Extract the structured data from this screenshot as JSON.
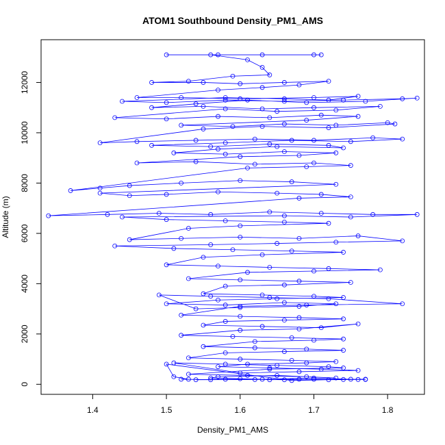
{
  "chart_data": {
    "type": "scatter",
    "title": "ATOM1 Southbound Density_PM1_AMS",
    "xlabel": "Density_PM1_AMS",
    "ylabel": "Altitude (m)",
    "xlim": [
      1.33,
      1.85
    ],
    "ylim": [
      -400,
      13700
    ],
    "x_ticks": [
      1.4,
      1.5,
      1.6,
      1.7,
      1.8
    ],
    "y_ticks": [
      0,
      2000,
      4000,
      6000,
      8000,
      10000,
      12000
    ],
    "grid": false,
    "legend": "none",
    "line_color": "#0000ff",
    "series": [
      {
        "x": [
          1.5,
          1.57,
          1.63,
          1.7,
          1.71,
          1.56,
          1.61,
          1.63,
          1.64,
          1.59,
          1.53,
          1.48,
          1.55,
          1.6,
          1.66,
          1.72,
          1.68,
          1.63,
          1.57,
          1.46,
          1.52,
          1.6,
          1.7,
          1.76,
          1.72,
          1.66,
          1.58,
          1.44,
          1.5,
          1.58,
          1.66,
          1.74,
          1.82,
          1.84,
          1.77,
          1.69,
          1.61,
          1.54,
          1.48,
          1.55,
          1.63,
          1.7,
          1.79,
          1.73,
          1.65,
          1.58,
          1.43,
          1.5,
          1.57,
          1.64,
          1.71,
          1.76,
          1.69,
          1.52,
          1.59,
          1.66,
          1.73,
          1.8,
          1.81,
          1.72,
          1.63,
          1.55,
          1.41,
          1.46,
          1.54,
          1.62,
          1.7,
          1.78,
          1.82,
          1.75,
          1.67,
          1.58,
          1.48,
          1.56,
          1.64,
          1.72,
          1.74,
          1.65,
          1.57,
          1.51,
          1.58,
          1.66,
          1.73,
          1.68,
          1.6,
          1.46,
          1.54,
          1.62,
          1.7,
          1.75,
          1.69,
          1.61,
          1.37,
          1.41,
          1.45,
          1.52,
          1.6,
          1.67,
          1.73,
          1.41,
          1.45,
          1.5,
          1.57,
          1.65,
          1.71,
          1.75,
          1.68,
          1.34,
          1.42,
          1.49,
          1.56,
          1.64,
          1.71,
          1.78,
          1.84,
          1.75,
          1.66,
          1.44,
          1.5,
          1.58,
          1.66,
          1.72,
          1.6,
          1.53,
          1.45,
          1.52,
          1.6,
          1.68,
          1.76,
          1.82,
          1.73,
          1.65,
          1.56,
          1.43,
          1.51,
          1.59,
          1.67,
          1.74,
          1.63,
          1.55,
          1.5,
          1.57,
          1.64,
          1.72,
          1.79,
          1.7,
          1.61,
          1.53,
          1.6,
          1.68,
          1.75,
          1.66,
          1.58,
          1.55,
          1.63,
          1.7,
          1.74,
          1.65,
          1.57,
          1.5,
          1.58,
          1.66,
          1.73,
          1.68,
          1.6,
          1.54,
          1.49,
          1.56,
          1.64,
          1.72,
          1.82,
          1.69,
          1.6,
          1.52,
          1.6,
          1.68,
          1.74,
          1.66,
          1.58,
          1.55,
          1.63,
          1.71,
          1.76,
          1.68,
          1.6,
          1.52,
          1.59,
          1.67,
          1.74,
          1.7,
          1.62,
          1.55,
          1.62,
          1.69,
          1.74,
          1.66,
          1.58,
          1.53,
          1.6,
          1.67,
          1.73,
          1.69,
          1.61,
          1.57,
          1.64,
          1.71,
          1.76,
          1.68,
          1.6,
          1.51,
          1.58,
          1.65,
          1.72,
          1.74,
          1.64,
          1.53,
          1.61,
          1.69,
          1.73,
          1.65,
          1.57,
          1.56,
          1.63,
          1.7,
          1.75,
          1.67,
          1.5,
          1.51,
          1.53,
          1.52,
          1.56,
          1.6,
          1.64,
          1.68,
          1.72,
          1.76,
          1.77,
          1.54,
          1.58,
          1.62,
          1.66,
          1.7,
          1.74,
          1.77
        ],
        "y": [
          13100,
          13100,
          13100,
          13100,
          13100,
          13100,
          12900,
          12600,
          12300,
          12250,
          12050,
          12000,
          12000,
          11950,
          12000,
          12050,
          11900,
          11800,
          11700,
          11400,
          11400,
          11350,
          11400,
          11450,
          11300,
          11350,
          11400,
          11250,
          11200,
          11300,
          11250,
          11300,
          11350,
          11380,
          11250,
          11200,
          11300,
          11150,
          11000,
          11050,
          10950,
          11000,
          11050,
          10900,
          10850,
          10950,
          10600,
          10550,
          10650,
          10600,
          10700,
          10650,
          10500,
          10300,
          10250,
          10350,
          10300,
          10400,
          10350,
          10200,
          10250,
          10150,
          9600,
          9650,
          9700,
          9750,
          9700,
          9800,
          9750,
          9650,
          9700,
          9600,
          9500,
          9450,
          9550,
          9500,
          9400,
          9450,
          9350,
          9200,
          9150,
          9250,
          9200,
          9100,
          9050,
          8800,
          8850,
          8750,
          8800,
          8700,
          8650,
          8600,
          7700,
          7800,
          7900,
          8000,
          8100,
          8050,
          7950,
          7600,
          7500,
          7550,
          7650,
          7600,
          7550,
          7450,
          7400,
          6700,
          6750,
          6800,
          6750,
          6850,
          6800,
          6750,
          6750,
          6650,
          6700,
          6650,
          6550,
          6500,
          6450,
          6400,
          6300,
          6200,
          5750,
          5800,
          5850,
          5800,
          5900,
          5700,
          5650,
          5600,
          5550,
          5500,
          5400,
          5350,
          5300,
          5250,
          5150,
          5050,
          4750,
          4700,
          4650,
          4600,
          4550,
          4500,
          4450,
          4200,
          4150,
          4100,
          4050,
          3950,
          3900,
          3600,
          3550,
          3500,
          3450,
          3400,
          3350,
          3200,
          3150,
          3250,
          3200,
          3100,
          3050,
          3000,
          3550,
          3500,
          3450,
          3400,
          3200,
          3150,
          3100,
          2750,
          2700,
          2650,
          2600,
          2550,
          2500,
          2350,
          2300,
          2250,
          2400,
          2200,
          2150,
          1950,
          1900,
          1850,
          1800,
          1750,
          1700,
          1500,
          1450,
          1400,
          1350,
          1300,
          1250,
          1050,
          1000,
          950,
          900,
          850,
          800,
          700,
          650,
          600,
          550,
          500,
          450,
          850,
          800,
          750,
          700,
          650,
          600,
          400,
          350,
          300,
          250,
          350,
          300,
          250,
          200,
          250,
          200,
          150,
          800,
          300,
          200,
          200,
          180,
          220,
          180,
          200,
          180,
          190,
          200,
          180,
          200,
          190,
          180,
          200,
          190,
          190
        ]
      }
    ]
  }
}
